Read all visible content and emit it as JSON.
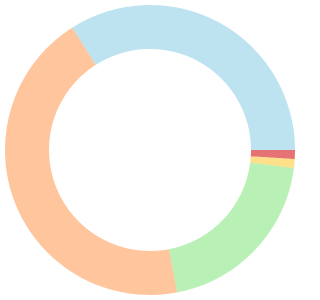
{
  "chart_data": {
    "type": "pie",
    "values": [
      1,
      1,
      20,
      44,
      34
    ],
    "colors": [
      "#e57373",
      "#ffe08a",
      "#b9f0b6",
      "#ffc59c",
      "#bde3f0"
    ]
  }
}
